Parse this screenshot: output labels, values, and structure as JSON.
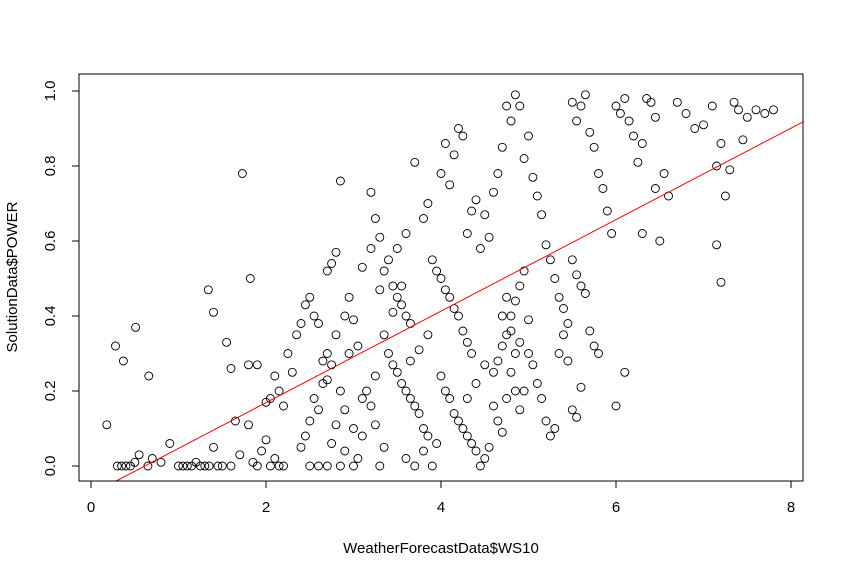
{
  "chart_data": {
    "type": "scatter",
    "xlabel": "WeatherForecastData$WS10",
    "ylabel": "SolutionData$POWER",
    "xlim": [
      -0.1,
      8.15
    ],
    "ylim": [
      -0.04,
      1.04
    ],
    "x_ticks": [
      0,
      2,
      4,
      6,
      8
    ],
    "y_ticks": [
      0.0,
      0.2,
      0.4,
      0.6,
      0.8,
      1.0
    ],
    "x_tick_labels": [
      "0",
      "2",
      "4",
      "6",
      "8"
    ],
    "y_tick_labels": [
      "0.0",
      "0.2",
      "0.4",
      "0.6",
      "0.8",
      "1.0"
    ],
    "grid": false,
    "point_style": "open-circle",
    "point_color": "#000000",
    "regression_line": {
      "intercept": -0.075,
      "slope": 0.122,
      "color": "#ff0000"
    },
    "points": [
      [
        0.18,
        0.11
      ],
      [
        0.28,
        0.32
      ],
      [
        0.37,
        0.28
      ],
      [
        0.51,
        0.37
      ],
      [
        0.66,
        0.24
      ],
      [
        1.34,
        0.47
      ],
      [
        1.4,
        0.41
      ],
      [
        1.73,
        0.78
      ],
      [
        1.82,
        0.5
      ],
      [
        1.55,
        0.33
      ],
      [
        1.6,
        0.26
      ],
      [
        1.8,
        0.27
      ],
      [
        1.9,
        0.27
      ],
      [
        0.3,
        0.0
      ],
      [
        0.35,
        0.0
      ],
      [
        0.4,
        0.0
      ],
      [
        0.45,
        0.0
      ],
      [
        0.5,
        0.01
      ],
      [
        0.55,
        0.03
      ],
      [
        0.65,
        0.0
      ],
      [
        0.7,
        0.02
      ],
      [
        0.8,
        0.01
      ],
      [
        0.9,
        0.06
      ],
      [
        1.0,
        0.0
      ],
      [
        1.05,
        0.0
      ],
      [
        1.1,
        0.0
      ],
      [
        1.15,
        0.0
      ],
      [
        1.2,
        0.01
      ],
      [
        1.25,
        0.0
      ],
      [
        1.3,
        0.0
      ],
      [
        1.35,
        0.0
      ],
      [
        1.4,
        0.05
      ],
      [
        1.45,
        0.0
      ],
      [
        1.5,
        0.0
      ],
      [
        1.6,
        0.0
      ],
      [
        1.65,
        0.12
      ],
      [
        1.7,
        0.03
      ],
      [
        1.8,
        0.11
      ],
      [
        1.85,
        0.01
      ],
      [
        1.9,
        0.0
      ],
      [
        1.95,
        0.04
      ],
      [
        2.0,
        0.07
      ],
      [
        2.05,
        0.0
      ],
      [
        2.1,
        0.02
      ],
      [
        2.15,
        0.0
      ],
      [
        2.2,
        0.0
      ],
      [
        2.0,
        0.17
      ],
      [
        2.05,
        0.18
      ],
      [
        2.1,
        0.24
      ],
      [
        2.15,
        0.2
      ],
      [
        2.2,
        0.16
      ],
      [
        2.25,
        0.3
      ],
      [
        2.3,
        0.25
      ],
      [
        2.35,
        0.35
      ],
      [
        2.4,
        0.38
      ],
      [
        2.45,
        0.43
      ],
      [
        2.5,
        0.45
      ],
      [
        2.55,
        0.4
      ],
      [
        2.6,
        0.38
      ],
      [
        2.65,
        0.22
      ],
      [
        2.7,
        0.23
      ],
      [
        2.4,
        0.05
      ],
      [
        2.45,
        0.08
      ],
      [
        2.5,
        0.0
      ],
      [
        2.6,
        0.0
      ],
      [
        2.7,
        0.0
      ],
      [
        2.75,
        0.06
      ],
      [
        2.8,
        0.11
      ],
      [
        2.85,
        0.0
      ],
      [
        2.9,
        0.04
      ],
      [
        2.5,
        0.12
      ],
      [
        2.55,
        0.18
      ],
      [
        2.6,
        0.15
      ],
      [
        2.65,
        0.28
      ],
      [
        2.7,
        0.52
      ],
      [
        2.75,
        0.54
      ],
      [
        2.8,
        0.57
      ],
      [
        2.85,
        0.76
      ],
      [
        2.9,
        0.4
      ],
      [
        2.95,
        0.45
      ],
      [
        3.0,
        0.39
      ],
      [
        3.05,
        0.32
      ],
      [
        3.1,
        0.18
      ],
      [
        3.15,
        0.2
      ],
      [
        3.2,
        0.16
      ],
      [
        3.25,
        0.11
      ],
      [
        3.3,
        0.0
      ],
      [
        3.35,
        0.05
      ],
      [
        3.0,
        0.0
      ],
      [
        3.05,
        0.02
      ],
      [
        3.2,
        0.73
      ],
      [
        3.25,
        0.66
      ],
      [
        3.3,
        0.61
      ],
      [
        3.35,
        0.52
      ],
      [
        3.4,
        0.55
      ],
      [
        3.45,
        0.48
      ],
      [
        3.5,
        0.45
      ],
      [
        3.55,
        0.43
      ],
      [
        3.6,
        0.4
      ],
      [
        3.65,
        0.38
      ],
      [
        3.4,
        0.3
      ],
      [
        3.45,
        0.27
      ],
      [
        3.5,
        0.25
      ],
      [
        3.55,
        0.22
      ],
      [
        3.6,
        0.2
      ],
      [
        3.65,
        0.18
      ],
      [
        3.7,
        0.16
      ],
      [
        3.75,
        0.14
      ],
      [
        3.8,
        0.1
      ],
      [
        3.85,
        0.08
      ],
      [
        3.6,
        0.02
      ],
      [
        3.7,
        0.0
      ],
      [
        3.8,
        0.04
      ],
      [
        3.9,
        0.0
      ],
      [
        3.95,
        0.06
      ],
      [
        3.5,
        0.58
      ],
      [
        3.6,
        0.62
      ],
      [
        3.7,
        0.81
      ],
      [
        3.8,
        0.66
      ],
      [
        3.85,
        0.7
      ],
      [
        3.9,
        0.55
      ],
      [
        3.95,
        0.52
      ],
      [
        4.0,
        0.5
      ],
      [
        4.05,
        0.47
      ],
      [
        4.1,
        0.45
      ],
      [
        4.15,
        0.42
      ],
      [
        4.2,
        0.4
      ],
      [
        4.25,
        0.36
      ],
      [
        4.3,
        0.33
      ],
      [
        4.35,
        0.3
      ],
      [
        4.0,
        0.78
      ],
      [
        4.05,
        0.86
      ],
      [
        4.1,
        0.75
      ],
      [
        4.15,
        0.83
      ],
      [
        4.2,
        0.9
      ],
      [
        4.25,
        0.88
      ],
      [
        4.3,
        0.62
      ],
      [
        4.35,
        0.68
      ],
      [
        4.4,
        0.71
      ],
      [
        4.45,
        0.58
      ],
      [
        4.0,
        0.24
      ],
      [
        4.05,
        0.2
      ],
      [
        4.1,
        0.18
      ],
      [
        4.15,
        0.14
      ],
      [
        4.2,
        0.12
      ],
      [
        4.25,
        0.1
      ],
      [
        4.3,
        0.08
      ],
      [
        4.35,
        0.06
      ],
      [
        4.4,
        0.04
      ],
      [
        4.45,
        0.0
      ],
      [
        4.5,
        0.02
      ],
      [
        4.55,
        0.05
      ],
      [
        4.6,
        0.25
      ],
      [
        4.65,
        0.28
      ],
      [
        4.7,
        0.32
      ],
      [
        4.75,
        0.35
      ],
      [
        4.8,
        0.4
      ],
      [
        4.85,
        0.44
      ],
      [
        4.9,
        0.48
      ],
      [
        4.95,
        0.52
      ],
      [
        4.5,
        0.67
      ],
      [
        4.55,
        0.61
      ],
      [
        4.6,
        0.73
      ],
      [
        4.65,
        0.78
      ],
      [
        4.7,
        0.85
      ],
      [
        4.75,
        0.96
      ],
      [
        4.8,
        0.92
      ],
      [
        4.85,
        0.99
      ],
      [
        4.9,
        0.96
      ],
      [
        4.95,
        0.82
      ],
      [
        5.0,
        0.88
      ],
      [
        5.05,
        0.77
      ],
      [
        5.1,
        0.72
      ],
      [
        5.15,
        0.67
      ],
      [
        5.2,
        0.59
      ],
      [
        5.25,
        0.55
      ],
      [
        5.3,
        0.5
      ],
      [
        5.35,
        0.45
      ],
      [
        5.4,
        0.42
      ],
      [
        5.45,
        0.38
      ],
      [
        5.0,
        0.3
      ],
      [
        5.05,
        0.27
      ],
      [
        5.1,
        0.22
      ],
      [
        5.15,
        0.18
      ],
      [
        5.2,
        0.12
      ],
      [
        5.25,
        0.08
      ],
      [
        5.3,
        0.1
      ],
      [
        5.35,
        0.3
      ],
      [
        5.4,
        0.35
      ],
      [
        5.45,
        0.28
      ],
      [
        5.5,
        0.97
      ],
      [
        5.55,
        0.92
      ],
      [
        5.6,
        0.96
      ],
      [
        5.65,
        0.99
      ],
      [
        5.7,
        0.89
      ],
      [
        5.75,
        0.85
      ],
      [
        5.8,
        0.78
      ],
      [
        5.85,
        0.74
      ],
      [
        5.9,
        0.68
      ],
      [
        5.95,
        0.62
      ],
      [
        5.5,
        0.55
      ],
      [
        5.55,
        0.51
      ],
      [
        5.6,
        0.48
      ],
      [
        5.65,
        0.46
      ],
      [
        5.7,
        0.36
      ],
      [
        5.75,
        0.32
      ],
      [
        5.8,
        0.3
      ],
      [
        5.5,
        0.15
      ],
      [
        5.55,
        0.13
      ],
      [
        5.6,
        0.21
      ],
      [
        6.0,
        0.96
      ],
      [
        6.05,
        0.94
      ],
      [
        6.1,
        0.98
      ],
      [
        6.15,
        0.92
      ],
      [
        6.2,
        0.88
      ],
      [
        6.25,
        0.81
      ],
      [
        6.3,
        0.86
      ],
      [
        6.0,
        0.16
      ],
      [
        6.1,
        0.25
      ],
      [
        6.3,
        0.62
      ],
      [
        6.35,
        0.98
      ],
      [
        6.4,
        0.97
      ],
      [
        6.45,
        0.93
      ],
      [
        6.5,
        0.6
      ],
      [
        6.55,
        0.78
      ],
      [
        6.6,
        0.72
      ],
      [
        6.7,
        0.97
      ],
      [
        6.8,
        0.94
      ],
      [
        6.9,
        0.9
      ],
      [
        7.0,
        0.91
      ],
      [
        7.1,
        0.96
      ],
      [
        7.15,
        0.59
      ],
      [
        7.2,
        0.49
      ],
      [
        7.25,
        0.72
      ],
      [
        7.3,
        0.79
      ],
      [
        7.35,
        0.97
      ],
      [
        7.4,
        0.95
      ],
      [
        7.5,
        0.93
      ],
      [
        7.6,
        0.95
      ],
      [
        7.7,
        0.94
      ],
      [
        7.8,
        0.95
      ],
      [
        7.45,
        0.87
      ],
      [
        7.2,
        0.86
      ],
      [
        7.15,
        0.8
      ],
      [
        6.45,
        0.74
      ],
      [
        3.1,
        0.53
      ],
      [
        3.2,
        0.58
      ],
      [
        3.3,
        0.47
      ],
      [
        2.95,
        0.3
      ],
      [
        2.8,
        0.35
      ],
      [
        4.7,
        0.4
      ],
      [
        4.75,
        0.45
      ],
      [
        4.8,
        0.36
      ],
      [
        4.85,
        0.3
      ],
      [
        4.9,
        0.33
      ],
      [
        4.95,
        0.2
      ],
      [
        5.0,
        0.39
      ],
      [
        3.85,
        0.35
      ],
      [
        3.75,
        0.31
      ],
      [
        3.65,
        0.28
      ],
      [
        4.3,
        0.18
      ],
      [
        4.4,
        0.22
      ],
      [
        4.5,
        0.27
      ],
      [
        4.6,
        0.16
      ],
      [
        4.65,
        0.12
      ],
      [
        4.7,
        0.09
      ],
      [
        4.75,
        0.18
      ],
      [
        4.8,
        0.25
      ],
      [
        4.85,
        0.2
      ],
      [
        4.9,
        0.15
      ],
      [
        3.0,
        0.1
      ],
      [
        3.1,
        0.08
      ],
      [
        2.9,
        0.15
      ],
      [
        2.85,
        0.2
      ],
      [
        2.75,
        0.27
      ],
      [
        2.7,
        0.3
      ],
      [
        3.25,
        0.24
      ],
      [
        3.35,
        0.35
      ],
      [
        3.45,
        0.41
      ],
      [
        3.55,
        0.48
      ]
    ]
  }
}
